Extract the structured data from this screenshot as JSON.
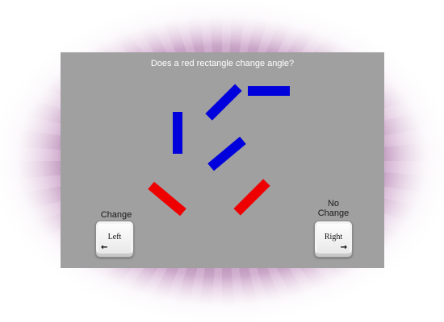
{
  "question": "Does a red rectangle change angle?",
  "colors": {
    "panel": "#a0a0a0",
    "blue": "#0000dd",
    "red": "#ee0000",
    "text": "#ffffff"
  },
  "left_choice": {
    "label": "Change",
    "key_label": "Left",
    "arrow_icon": "left-arrow-icon",
    "arrow": "←"
  },
  "right_choice": {
    "label_line1": "No",
    "label_line2": "Change",
    "key_label": "Right",
    "arrow_icon": "right-arrow-icon",
    "arrow": "→"
  },
  "rectangles": [
    {
      "color": "blue",
      "angle": -45
    },
    {
      "color": "blue",
      "angle": 0
    },
    {
      "color": "blue",
      "angle": 90
    },
    {
      "color": "blue",
      "angle": -40
    },
    {
      "color": "red",
      "angle": 40
    },
    {
      "color": "red",
      "angle": -45
    }
  ]
}
